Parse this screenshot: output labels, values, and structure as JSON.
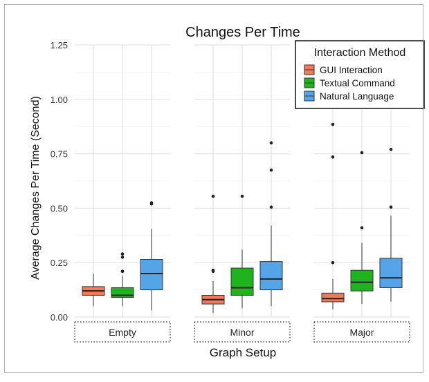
{
  "chart_data": {
    "type": "boxplot",
    "title": "Changes Per Time",
    "xlabel": "Graph Setup",
    "ylabel": "Average Changes Per Time (Second)",
    "ylim": [
      0,
      1.25
    ],
    "yticks": [
      0,
      0.25,
      0.5,
      0.75,
      1.0,
      1.25
    ],
    "ytick_labels": [
      "0.00",
      "0.25",
      "0.50",
      "0.75",
      "1.00",
      "1.25"
    ],
    "grid": true,
    "legend": {
      "title": "Interaction Method",
      "placement": "top-right"
    },
    "series": [
      {
        "name": "GUI Interaction",
        "color": "#f07a5c"
      },
      {
        "name": "Textual Command",
        "color": "#1fb41f"
      },
      {
        "name": "Natural Language",
        "color": "#55a4e8"
      }
    ],
    "facets": [
      {
        "label": "Empty",
        "boxes": [
          {
            "series": 0,
            "whisker_low": 0.05,
            "q1": 0.1,
            "median": 0.12,
            "q3": 0.14,
            "whisker_high": 0.2,
            "outliers": []
          },
          {
            "series": 1,
            "whisker_low": 0.05,
            "q1": 0.09,
            "median": 0.1,
            "q3": 0.135,
            "whisker_high": 0.19,
            "outliers": [
              0.21,
              0.21,
              0.275,
              0.29
            ]
          },
          {
            "series": 2,
            "whisker_low": 0.03,
            "q1": 0.125,
            "median": 0.2,
            "q3": 0.265,
            "whisker_high": 0.405,
            "outliers": [
              0.52,
              0.525
            ]
          }
        ]
      },
      {
        "label": "Minor",
        "boxes": [
          {
            "series": 0,
            "whisker_low": 0.02,
            "q1": 0.06,
            "median": 0.08,
            "q3": 0.1,
            "whisker_high": 0.165,
            "outliers": [
              0.21,
              0.215,
              0.555
            ]
          },
          {
            "series": 1,
            "whisker_low": 0.04,
            "q1": 0.1,
            "median": 0.135,
            "q3": 0.225,
            "whisker_high": 0.31,
            "outliers": [
              0.555
            ]
          },
          {
            "series": 2,
            "whisker_low": 0.05,
            "q1": 0.125,
            "median": 0.175,
            "q3": 0.255,
            "whisker_high": 0.42,
            "outliers": [
              0.505,
              0.675,
              0.8
            ]
          }
        ]
      },
      {
        "label": "Major",
        "boxes": [
          {
            "series": 0,
            "whisker_low": 0.035,
            "q1": 0.07,
            "median": 0.085,
            "q3": 0.11,
            "whisker_high": 0.175,
            "outliers": [
              0.25,
              0.735,
              0.885
            ]
          },
          {
            "series": 1,
            "whisker_low": 0.06,
            "q1": 0.12,
            "median": 0.16,
            "q3": 0.215,
            "whisker_high": 0.34,
            "outliers": [
              0.41,
              0.755
            ]
          },
          {
            "series": 2,
            "whisker_low": 0.07,
            "q1": 0.135,
            "median": 0.18,
            "q3": 0.27,
            "whisker_high": 0.465,
            "outliers": [
              0.505,
              0.77
            ]
          }
        ]
      }
    ]
  }
}
